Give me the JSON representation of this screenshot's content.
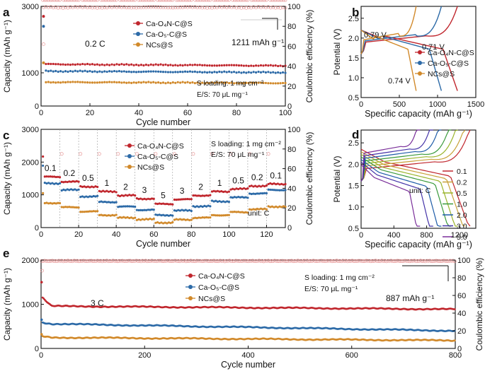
{
  "colors": {
    "red": "#c0262d",
    "blue": "#2c6aa7",
    "orange": "#d1892a",
    "gray": "#777777"
  },
  "series_names": [
    "Ca-O₄N-C@S",
    "Ca-O₅-C@S",
    "NCs@S"
  ],
  "chart_data": [
    {
      "panel": "a",
      "type": "scatter",
      "xlabel": "Cycle number",
      "ylabel": "Capacity (mAh g⁻¹)",
      "y2label": "Coulombic efficiency (%)",
      "xlim": [
        0,
        100
      ],
      "ylim": [
        0,
        3000
      ],
      "y2lim": [
        0,
        100
      ],
      "xticks": [
        0,
        20,
        40,
        60,
        80,
        100
      ],
      "yticks": [
        0,
        1000,
        3000
      ],
      "y2ticks": [
        0,
        20,
        40,
        60,
        80,
        100
      ],
      "annotations": {
        "rate": "0.2 C",
        "capacity": "1211 mAh g⁻¹",
        "loading": "S loading: 1 mg cm⁻²",
        "es": "E/S: 70 μL mg⁻¹"
      },
      "series": [
        {
          "name": "Ca-O₄N-C@S",
          "initial": 2700,
          "values": [
            1260,
            1211
          ]
        },
        {
          "name": "Ca-O₅-C@S",
          "initial": 2400,
          "values": [
            1050,
            1010
          ]
        },
        {
          "name": "NCs@S",
          "initial": 1300,
          "values": [
            720,
            690
          ]
        }
      ],
      "ce": 99
    },
    {
      "panel": "b",
      "type": "line",
      "xlabel": "Specific capacity (mAh g⁻¹)",
      "ylabel": "Potential (V)",
      "xlim": [
        0,
        1500
      ],
      "ylim": [
        0.5,
        2.8
      ],
      "xticks": [
        0,
        500,
        1000,
        1500
      ],
      "yticks": [
        0.5,
        1.0,
        1.5,
        2.0,
        2.5
      ],
      "annotations": {
        "a1": "0.79 V",
        "a2": "0.71 V",
        "a3": "0.74 V"
      },
      "series": [
        {
          "name": "Ca-O₄N-C@S",
          "capacity": 1260
        },
        {
          "name": "Ca-O₅-C@S",
          "capacity": 1050
        },
        {
          "name": "NCs@S",
          "capacity": 720
        }
      ]
    },
    {
      "panel": "c",
      "type": "scatter",
      "xlabel": "Cycle number",
      "ylabel": "Capacity (mAh g⁻¹)",
      "y2label": "Coulombic efficiency (%)",
      "xlim": [
        0,
        130
      ],
      "ylim": [
        0,
        3000
      ],
      "y2lim": [
        0,
        100
      ],
      "xticks": [
        0,
        20,
        40,
        60,
        80,
        100,
        120
      ],
      "yticks": [
        0,
        1000,
        2000,
        3000
      ],
      "y2ticks": [
        0,
        20,
        40,
        60,
        80,
        100
      ],
      "rates": [
        "0.1",
        "0.2",
        "0.5",
        "1",
        "2",
        "3",
        "5",
        "3",
        "2",
        "1",
        "0.5",
        "0.2",
        "0.1"
      ],
      "annotations": {
        "loading": "S loading: 1 mg cm⁻²",
        "es": "E/S: 70 μL mg⁻¹",
        "unit": "unit: C"
      },
      "series": [
        {
          "name": "Ca-O₄N-C@S",
          "values": [
            1550,
            1400,
            1250,
            1100,
            980,
            880,
            720,
            860,
            980,
            1100,
            1180,
            1270,
            1330
          ]
        },
        {
          "name": "Ca-O₅-C@S",
          "values": [
            1350,
            1150,
            950,
            780,
            640,
            540,
            380,
            520,
            650,
            800,
            920,
            1040,
            1150
          ]
        },
        {
          "name": "NCs@S",
          "values": [
            750,
            620,
            490,
            380,
            300,
            250,
            150,
            240,
            300,
            380,
            470,
            560,
            640
          ]
        }
      ]
    },
    {
      "panel": "d",
      "type": "line",
      "xlabel": "Specific capacity (mAh g⁻¹)",
      "ylabel": "Potential (V)",
      "xlim": [
        0,
        1400
      ],
      "ylim": [
        0.5,
        2.8
      ],
      "xticks": [
        0,
        400,
        800,
        1200
      ],
      "yticks": [
        0.5,
        1.0,
        1.5,
        2.0,
        2.5
      ],
      "legend_title": "unit: C",
      "series": [
        {
          "name": "0.1",
          "capacity": 1330
        },
        {
          "name": "0.2",
          "capacity": 1270
        },
        {
          "name": "0.5",
          "capacity": 1180
        },
        {
          "name": "1.0",
          "capacity": 1100
        },
        {
          "name": "2.0",
          "capacity": 980
        },
        {
          "name": "3.0",
          "capacity": 880
        },
        {
          "name": "5.0",
          "capacity": 720
        }
      ]
    },
    {
      "panel": "e",
      "type": "scatter",
      "xlabel": "Cycle number",
      "ylabel": "Capacity (mAh g⁻¹)",
      "y2label": "Coulombic  efficiency (%)",
      "xlim": [
        0,
        800
      ],
      "ylim": [
        0,
        2000
      ],
      "y2lim": [
        0,
        100
      ],
      "xticks": [
        0,
        200,
        400,
        600,
        800
      ],
      "yticks": [
        0,
        1000,
        2000
      ],
      "y2ticks": [
        0,
        20,
        40,
        60,
        80,
        100
      ],
      "annotations": {
        "rate": "3 C",
        "capacity": "887 mAh g⁻¹",
        "loading": "S loading: 1 mg cm⁻²",
        "es": "E/S: 70 μL mg⁻¹"
      },
      "series": [
        {
          "name": "Ca-O₄N-C@S",
          "initial": 1500,
          "values": [
            960,
            887
          ]
        },
        {
          "name": "Ca-O₅-C@S",
          "initial": 650,
          "values": [
            560,
            400
          ]
        },
        {
          "name": "NCs@S",
          "initial": 320,
          "values": [
            250,
            180
          ]
        }
      ],
      "ce": 99
    }
  ]
}
